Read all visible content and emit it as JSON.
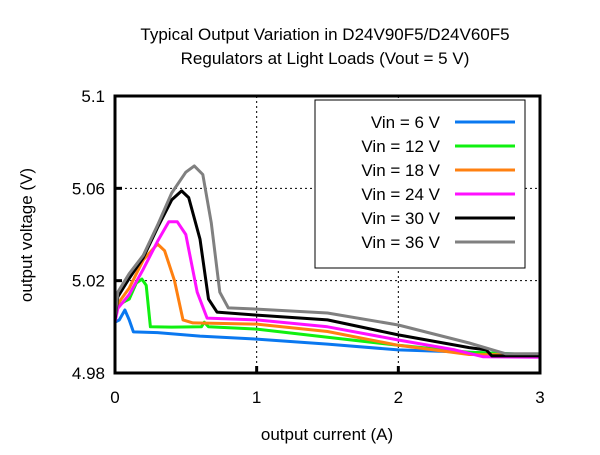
{
  "chart_data": {
    "type": "line",
    "title": [
      "Typical Output Variation in D24V90F5/D24V60F5",
      "Regulators at Light Loads (Vout = 5 V)"
    ],
    "xlabel": "output current (A)",
    "ylabel": "output voltage (V)",
    "xlim": [
      0,
      3
    ],
    "ylim": [
      4.98,
      5.1
    ],
    "xticks": [
      0,
      1,
      2,
      3
    ],
    "xtick_labels": [
      "0",
      "1",
      "2",
      "3"
    ],
    "yticks": [
      4.98,
      5.02,
      5.06,
      5.1
    ],
    "ytick_labels": [
      "4.98",
      "5.02",
      "5.06",
      "5.1"
    ],
    "grid": true,
    "legend_position": "top-right",
    "series": [
      {
        "name": "Vin = 6 V",
        "color": "#0a78f0",
        "x": [
          0,
          0.03,
          0.07,
          0.1,
          0.13,
          0.3,
          0.6,
          1.0,
          1.5,
          2.0,
          2.5,
          3.0
        ],
        "y": [
          5.002,
          5.003,
          5.0073,
          5.003,
          4.9978,
          4.9975,
          4.996,
          4.9947,
          4.9925,
          4.99,
          4.989,
          4.9878
        ]
      },
      {
        "name": "Vin = 12 V",
        "color": "#10f010",
        "x": [
          0,
          0.02,
          0.06,
          0.1,
          0.15,
          0.19,
          0.22,
          0.25,
          0.4,
          0.61,
          0.63,
          0.66,
          1.0,
          1.5,
          2.0,
          2.5,
          3.0
        ],
        "y": [
          5.004,
          5.009,
          5.0107,
          5.012,
          5.019,
          5.0207,
          5.018,
          5.0,
          4.9999,
          5.0,
          5.002,
          5.0,
          4.999,
          4.9955,
          4.992,
          4.989,
          4.9878
        ]
      },
      {
        "name": "Vin = 18 V",
        "color": "#ff8010",
        "x": [
          0,
          0.02,
          0.1,
          0.2,
          0.3,
          0.35,
          0.42,
          0.48,
          0.55,
          1.0,
          1.5,
          2.0,
          2.5,
          3.0
        ],
        "y": [
          5.003,
          5.01,
          5.0168,
          5.029,
          5.0359,
          5.033,
          5.02,
          5.003,
          5.0017,
          5.0012,
          4.998,
          4.992,
          4.988,
          4.9878
        ]
      },
      {
        "name": "Vin = 24 V",
        "color": "#ff10ff",
        "x": [
          0,
          0.02,
          0.1,
          0.2,
          0.3,
          0.38,
          0.44,
          0.5,
          0.58,
          0.65,
          1.0,
          1.5,
          2.0,
          2.4,
          2.6,
          3.0
        ],
        "y": [
          5.002,
          5.008,
          5.014,
          5.025,
          5.037,
          5.0455,
          5.0455,
          5.04,
          5.015,
          5.0038,
          5.003,
          5.0,
          4.9943,
          4.99,
          4.987,
          4.9868
        ]
      },
      {
        "name": "Vin = 30 V",
        "color": "#000000",
        "x": [
          0,
          0.02,
          0.1,
          0.2,
          0.3,
          0.4,
          0.47,
          0.52,
          0.6,
          0.66,
          0.72,
          1.0,
          1.5,
          2.0,
          2.5,
          2.62,
          2.66,
          3.0
        ],
        "y": [
          5.003,
          5.013,
          5.021,
          5.03,
          5.043,
          5.055,
          5.0589,
          5.056,
          5.038,
          5.012,
          5.0064,
          5.0051,
          5.003,
          4.9965,
          4.991,
          4.99,
          4.9874,
          4.9874
        ]
      },
      {
        "name": "Vin = 36 V",
        "color": "#808080",
        "x": [
          0,
          0.02,
          0.1,
          0.2,
          0.3,
          0.4,
          0.5,
          0.56,
          0.62,
          0.68,
          0.74,
          0.8,
          1.0,
          1.5,
          2.0,
          2.5,
          2.72,
          2.76,
          3.0
        ],
        "y": [
          5.004,
          5.015,
          5.023,
          5.031,
          5.044,
          5.058,
          5.067,
          5.0697,
          5.066,
          5.045,
          5.015,
          5.0082,
          5.0077,
          5.006,
          5.0008,
          4.993,
          4.989,
          4.9883,
          4.9883
        ]
      }
    ]
  }
}
